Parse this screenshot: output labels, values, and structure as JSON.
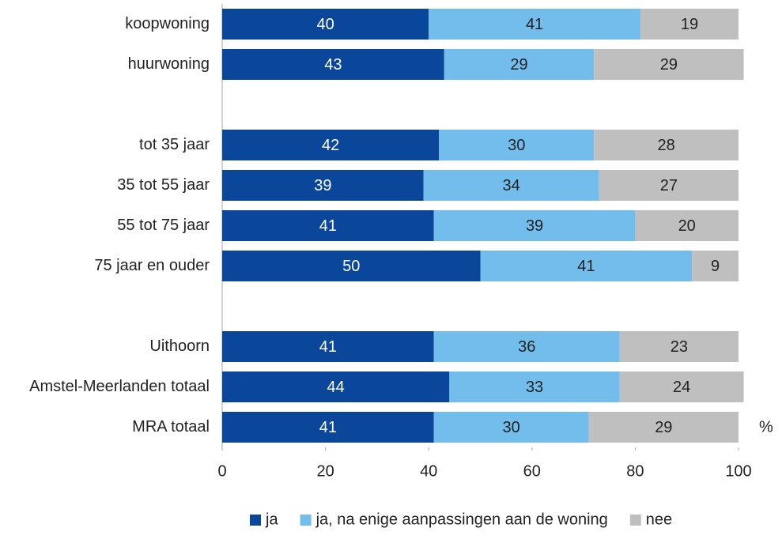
{
  "chart_data": {
    "type": "stacked_barh",
    "categories": [
      "koopwoning",
      "huurwoning",
      null,
      "tot 35 jaar",
      "35 tot 55 jaar",
      "55 tot 75 jaar",
      "75 jaar en ouder",
      null,
      "Uithoorn",
      "Amstel-Meerlanden totaal",
      "MRA totaal"
    ],
    "series": [
      {
        "name": "ja",
        "color": "#0a479b",
        "label_color": "#ffffff",
        "values": [
          40,
          43,
          null,
          42,
          39,
          41,
          50,
          null,
          41,
          44,
          41
        ]
      },
      {
        "name": "ja, na enige aanpassingen aan de woning",
        "color": "#72bdec",
        "label_color": "#222222",
        "values": [
          41,
          29,
          null,
          30,
          34,
          39,
          41,
          null,
          36,
          33,
          30
        ]
      },
      {
        "name": "nee",
        "color": "#bfbfbf",
        "label_color": "#222222",
        "values": [
          19,
          29,
          null,
          28,
          27,
          20,
          9,
          null,
          23,
          24,
          29
        ]
      }
    ],
    "xlabel": "%",
    "xlim": [
      0,
      100
    ],
    "xticks": [
      0,
      20,
      40,
      60,
      80,
      100
    ],
    "grid": false
  }
}
